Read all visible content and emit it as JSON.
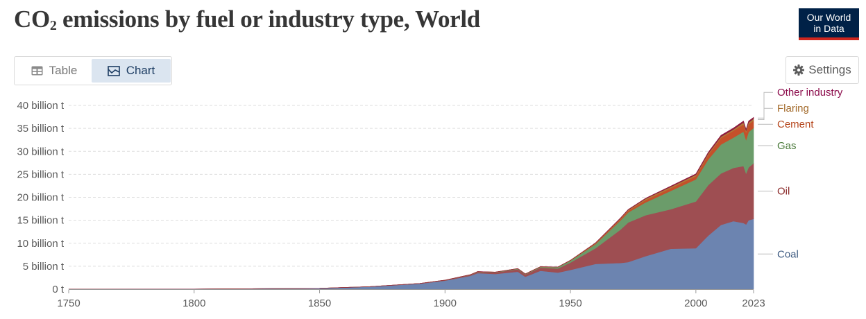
{
  "header": {
    "title_prefix": "CO",
    "title_sub": "2",
    "title_rest": " emissions by fuel or industry type, World",
    "logo_line1": "Our World",
    "logo_line2": "in Data"
  },
  "tabs": {
    "table_label": "Table",
    "chart_label": "Chart",
    "active": "chart"
  },
  "settings_label": "Settings",
  "chart_data": {
    "type": "area",
    "stacked": true,
    "title": "CO2 emissions by fuel or industry type, World",
    "xlabel": "",
    "ylabel": "",
    "xlim": [
      1750,
      2023
    ],
    "ylim": [
      0,
      40
    ],
    "y_unit": "billion t",
    "y_ticks": [
      {
        "value": 0,
        "label": "0 t"
      },
      {
        "value": 5,
        "label": "5 billion t"
      },
      {
        "value": 10,
        "label": "10 billion t"
      },
      {
        "value": 15,
        "label": "15 billion t"
      },
      {
        "value": 20,
        "label": "20 billion t"
      },
      {
        "value": 25,
        "label": "25 billion t"
      },
      {
        "value": 30,
        "label": "30 billion t"
      },
      {
        "value": 35,
        "label": "35 billion t"
      },
      {
        "value": 40,
        "label": "40 billion t"
      }
    ],
    "x_ticks": [
      {
        "value": 1750,
        "label": "1750"
      },
      {
        "value": 1800,
        "label": "1800"
      },
      {
        "value": 1850,
        "label": "1850"
      },
      {
        "value": 1900,
        "label": "1900"
      },
      {
        "value": 1950,
        "label": "1950"
      },
      {
        "value": 2000,
        "label": "2000"
      },
      {
        "value": 2023,
        "label": "2023"
      }
    ],
    "grid": "horizontal-dashed",
    "x": [
      1750,
      1800,
      1850,
      1870,
      1890,
      1900,
      1910,
      1913,
      1920,
      1929,
      1932,
      1938,
      1945,
      1950,
      1960,
      1970,
      1973,
      1980,
      1990,
      2000,
      2005,
      2010,
      2015,
      2019,
      2020,
      2021,
      2023
    ],
    "series": [
      {
        "name": "Coal",
        "color": "#6c84b0",
        "values": [
          0.01,
          0.03,
          0.2,
          0.55,
          1.2,
          1.85,
          2.9,
          3.5,
          3.3,
          3.8,
          2.7,
          4.0,
          3.6,
          4.2,
          5.5,
          5.7,
          5.9,
          7.2,
          8.8,
          8.9,
          11.7,
          14.0,
          14.8,
          14.4,
          14.1,
          15.0,
          15.3
        ]
      },
      {
        "name": "Oil",
        "color": "#9e4e52",
        "values": [
          0,
          0,
          0,
          0.01,
          0.05,
          0.1,
          0.2,
          0.25,
          0.35,
          0.55,
          0.5,
          0.7,
          0.9,
          1.6,
          3.4,
          7.3,
          8.6,
          8.9,
          8.6,
          10.2,
          11.0,
          11.2,
          11.6,
          12.4,
          11.1,
          11.5,
          12.1
        ]
      },
      {
        "name": "Gas",
        "color": "#6b9c6a",
        "values": [
          0,
          0,
          0,
          0,
          0,
          0.01,
          0.03,
          0.05,
          0.05,
          0.1,
          0.1,
          0.15,
          0.3,
          0.4,
          0.9,
          2.0,
          2.2,
          2.8,
          4.0,
          4.8,
          5.6,
          6.3,
          6.6,
          7.5,
          7.3,
          7.7,
          7.7
        ]
      },
      {
        "name": "Cement",
        "color": "#c5502a",
        "values": [
          0,
          0,
          0,
          0,
          0,
          0.01,
          0.02,
          0.03,
          0.03,
          0.05,
          0.04,
          0.06,
          0.05,
          0.08,
          0.15,
          0.3,
          0.35,
          0.5,
          0.6,
          0.7,
          1.0,
          1.4,
          1.5,
          1.6,
          1.6,
          1.7,
          1.6
        ]
      },
      {
        "name": "Flaring",
        "color": "#b07a3a",
        "values": [
          0,
          0,
          0,
          0,
          0,
          0,
          0,
          0,
          0,
          0,
          0,
          0,
          0,
          0.01,
          0.1,
          0.15,
          0.2,
          0.3,
          0.3,
          0.3,
          0.3,
          0.3,
          0.3,
          0.4,
          0.4,
          0.4,
          0.4
        ]
      },
      {
        "name": "Other industry",
        "color": "#8e1b3f",
        "values": [
          0,
          0,
          0,
          0,
          0,
          0,
          0,
          0,
          0,
          0,
          0,
          0,
          0,
          0.02,
          0.05,
          0.1,
          0.1,
          0.12,
          0.15,
          0.2,
          0.25,
          0.3,
          0.3,
          0.3,
          0.3,
          0.3,
          0.3
        ]
      }
    ],
    "legend_position": "right, inline labels",
    "label_colors": {
      "Coal": "#3d5a80",
      "Oil": "#8b2a2a",
      "Gas": "#4a7a3a",
      "Cement": "#b5451b",
      "Flaring": "#a36a2a",
      "Other industry": "#8b0a4a"
    }
  }
}
